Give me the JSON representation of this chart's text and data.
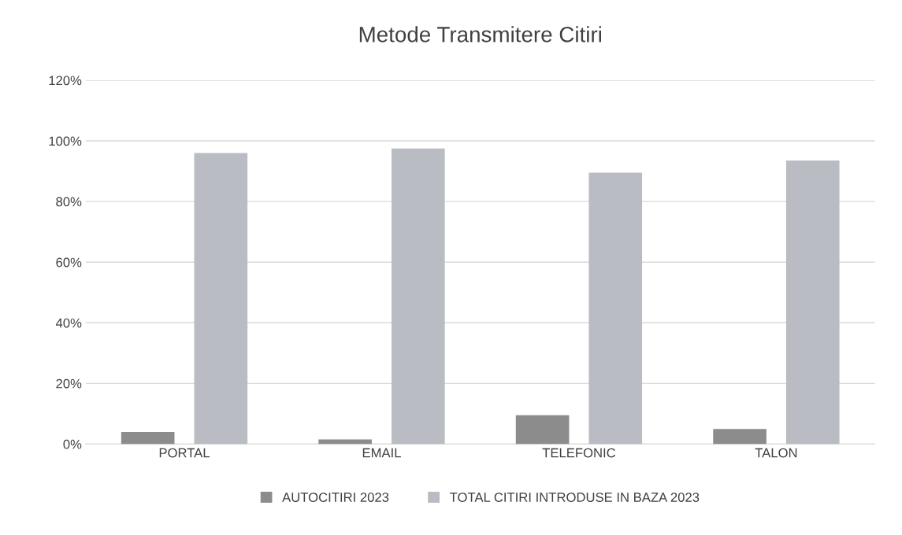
{
  "chart_data": {
    "type": "bar",
    "title": "Metode Transmitere Citiri",
    "categories": [
      "PORTAL",
      "EMAIL",
      "TELEFONIC",
      "TALON"
    ],
    "series": [
      {
        "name": "AUTOCITIRI 2023",
        "color": "#8c8c8c",
        "values": [
          4,
          1.5,
          9.5,
          5
        ]
      },
      {
        "name": "TOTAL CITIRI INTRODUSE IN BAZA 2023",
        "color": "#b9bcc2",
        "values": [
          96,
          97.5,
          89.5,
          93.5
        ]
      }
    ],
    "ylim": [
      0,
      120
    ],
    "yticks": [
      {
        "value": 0,
        "label": "0%"
      },
      {
        "value": 20,
        "label": "20%"
      },
      {
        "value": 40,
        "label": "40%"
      },
      {
        "value": 60,
        "label": "60%"
      },
      {
        "value": 80,
        "label": "80%"
      },
      {
        "value": 100,
        "label": "100%"
      },
      {
        "value": 120,
        "label": "120%"
      }
    ],
    "grid": "y",
    "legend": "bottom"
  }
}
